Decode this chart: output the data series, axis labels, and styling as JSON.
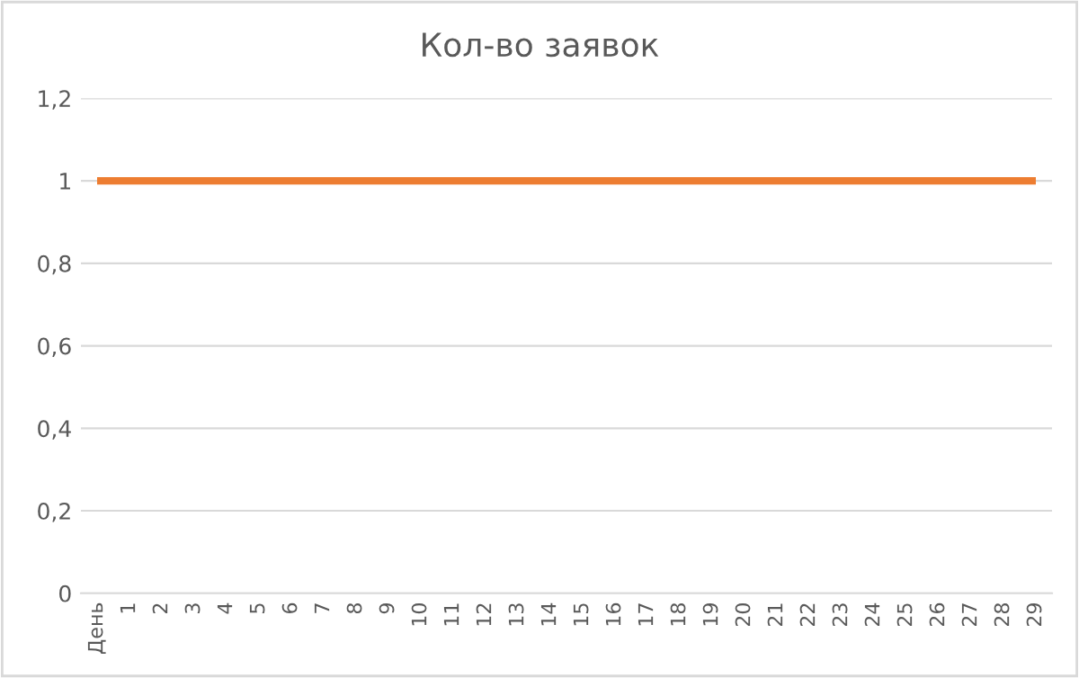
{
  "chart_data": {
    "type": "line",
    "title": "Кол-во заявок",
    "categories": [
      "День",
      "1",
      "2",
      "3",
      "4",
      "5",
      "6",
      "7",
      "8",
      "9",
      "10",
      "11",
      "12",
      "13",
      "14",
      "15",
      "16",
      "17",
      "18",
      "19",
      "20",
      "21",
      "22",
      "23",
      "24",
      "25",
      "26",
      "27",
      "28",
      "29"
    ],
    "series": [
      {
        "color": "#ed7d31",
        "values": [
          1,
          1,
          1,
          1,
          1,
          1,
          1,
          1,
          1,
          1,
          1,
          1,
          1,
          1,
          1,
          1,
          1,
          1,
          1,
          1,
          1,
          1,
          1,
          1,
          1,
          1,
          1,
          1,
          1,
          1
        ]
      }
    ],
    "ylim": [
      0,
      1.2
    ],
    "yticks": [
      0,
      {
        "value": 0.2,
        "label": "0,2"
      },
      {
        "value": 0.4,
        "label": "0,4"
      },
      {
        "value": 0.6,
        "label": "0,6"
      },
      {
        "value": 0.8,
        "label": "0,8"
      },
      1,
      {
        "value": 1.2,
        "label": "1,2"
      }
    ],
    "grid": "y",
    "legend": false,
    "marker": "none",
    "line_style": "solid"
  }
}
